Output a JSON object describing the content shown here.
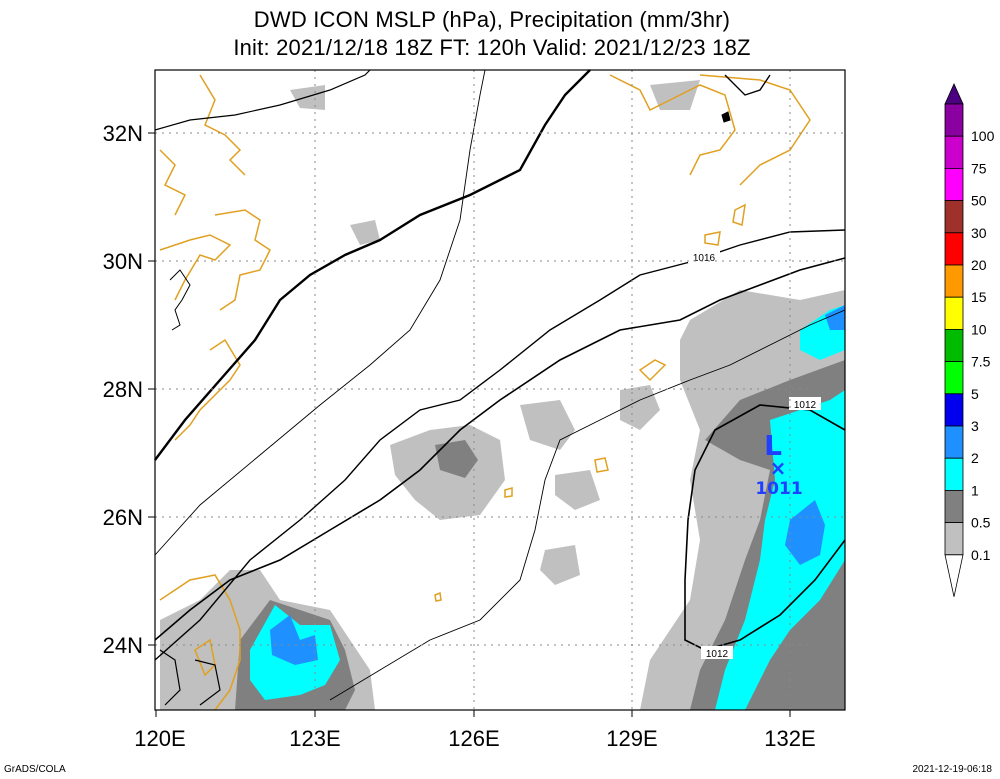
{
  "title": {
    "line1": "DWD ICON MSLP (hPa), Precipitation (mm/3hr)",
    "line2": "Init: 2021/12/18 18Z  FT: 120h  Valid: 2021/12/23 18Z"
  },
  "axes": {
    "x_ticks": [
      "120E",
      "123E",
      "126E",
      "129E",
      "132E"
    ],
    "y_ticks": [
      "32N",
      "30N",
      "28N",
      "26N",
      "24N"
    ]
  },
  "isobar_labels": [
    "1016",
    "1012",
    "1012"
  ],
  "low_center": {
    "symbol": "L",
    "marker": "×",
    "pressure": "1011"
  },
  "colorbar": {
    "labels": [
      "100",
      "75",
      "50",
      "30",
      "20",
      "15",
      "10",
      "7.5",
      "5",
      "3",
      "2",
      "1",
      "0.5",
      "0.1"
    ],
    "colors": [
      "#4b0082",
      "#8b00a0",
      "#cc00cc",
      "#ff00ff",
      "#a0302a",
      "#ff0000",
      "#ff9900",
      "#ffff00",
      "#00bb00",
      "#00ff00",
      "#0000ee",
      "#1e90ff",
      "#00ffff",
      "#808080",
      "#c0c0c0",
      "#ffffff"
    ]
  },
  "footer": {
    "left": "GrADS/COLA",
    "right": "2021-12-19-06:18"
  }
}
